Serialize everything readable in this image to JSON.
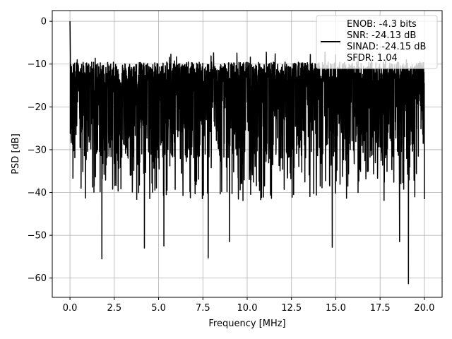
{
  "chart_data": {
    "type": "line",
    "title": "",
    "xlabel": "Frequency [MHz]",
    "ylabel": "PSD [dB]",
    "xlim": [
      -1.0,
      21.0
    ],
    "ylim": [
      -64.5,
      2.5
    ],
    "xticks": [
      0.0,
      2.5,
      5.0,
      7.5,
      10.0,
      12.5,
      15.0,
      17.5,
      20.0
    ],
    "xtick_labels": [
      "0.0",
      "2.5",
      "5.0",
      "7.5",
      "10.0",
      "12.5",
      "15.0",
      "17.5",
      "20.0"
    ],
    "yticks": [
      0,
      -10,
      -20,
      -30,
      -40,
      -50,
      -60
    ],
    "ytick_labels": [
      "0",
      "−10",
      "−20",
      "−30",
      "−40",
      "−50",
      "−60"
    ],
    "grid": true,
    "legend_position": "top-right",
    "legend_lines": [
      "ENOB: -4.3 bits",
      "SNR: -24.13 dB",
      "SINAD: -24.15 dB",
      "SFDR: 1.04"
    ],
    "series": [
      {
        "color": "#000000",
        "peak": {
          "x": 0.0,
          "y": 0.0
        },
        "typical_range": [
          -32,
          -13
        ],
        "max_envelope": -7,
        "notable_dips": [
          {
            "x": 1.8,
            "y": -55.5
          },
          {
            "x": 4.2,
            "y": -53.0
          },
          {
            "x": 5.3,
            "y": -52.5
          },
          {
            "x": 7.8,
            "y": -55.3
          },
          {
            "x": 9.0,
            "y": -51.5
          },
          {
            "x": 14.8,
            "y": -52.8
          },
          {
            "x": 18.6,
            "y": -51.5
          },
          {
            "x": 19.1,
            "y": -61.3
          }
        ]
      }
    ]
  }
}
